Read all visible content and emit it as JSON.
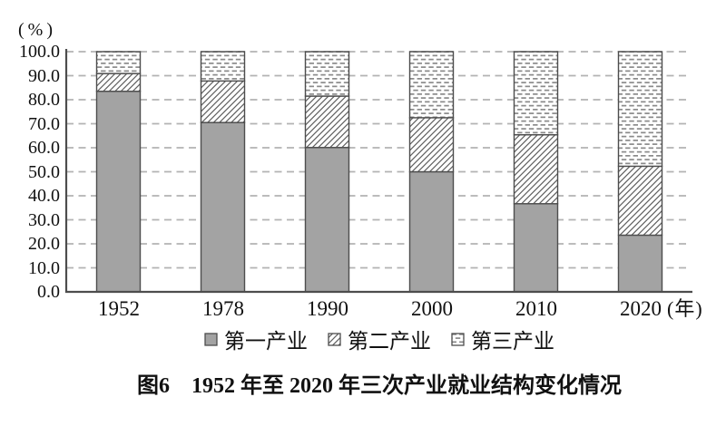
{
  "title": "图6　1952 年至 2020 年三次产业就业结构变化情况",
  "y_axis": {
    "unit": "(%)",
    "ticks": [
      "0.0",
      "10.0",
      "20.0",
      "30.0",
      "40.0",
      "50.0",
      "60.0",
      "70.0",
      "80.0",
      "90.0",
      "100.0"
    ]
  },
  "x_axis": {
    "unit": "(年)"
  },
  "legend": [
    "第一产业",
    "第二产业",
    "第三产业"
  ],
  "colors": {
    "bar_gray": "#a3a3a3",
    "bar_border": "#4d4d4d",
    "grid_line": "#b3b3b3",
    "axis_line": "#4d4d4d",
    "hatch_line": "#5f5f5f",
    "dash_mark": "#8a8a8a",
    "text": "#111111"
  },
  "chart_data": {
    "type": "bar",
    "stacked": true,
    "title": "图6　1952 年至 2020 年三次产业就业结构变化情况",
    "categories": [
      "1952",
      "1978",
      "1990",
      "2000",
      "2010",
      "2020"
    ],
    "series": [
      {
        "name": "第一产业",
        "pattern": "solid-gray",
        "values": [
          83.5,
          70.5,
          60.1,
          50.0,
          36.7,
          23.6
        ]
      },
      {
        "name": "第二产业",
        "pattern": "diagonal-hatch",
        "values": [
          7.4,
          17.3,
          21.4,
          22.5,
          28.7,
          28.7
        ]
      },
      {
        "name": "第三产业",
        "pattern": "horizontal-dash",
        "values": [
          9.1,
          12.2,
          18.5,
          27.5,
          34.6,
          47.7
        ]
      }
    ],
    "ylabel": "(%)",
    "xlabel_unit": "(年)",
    "ylim": [
      0,
      100
    ],
    "ytick_step": 10,
    "grid": "horizontal-dashed",
    "legend_position": "bottom"
  }
}
